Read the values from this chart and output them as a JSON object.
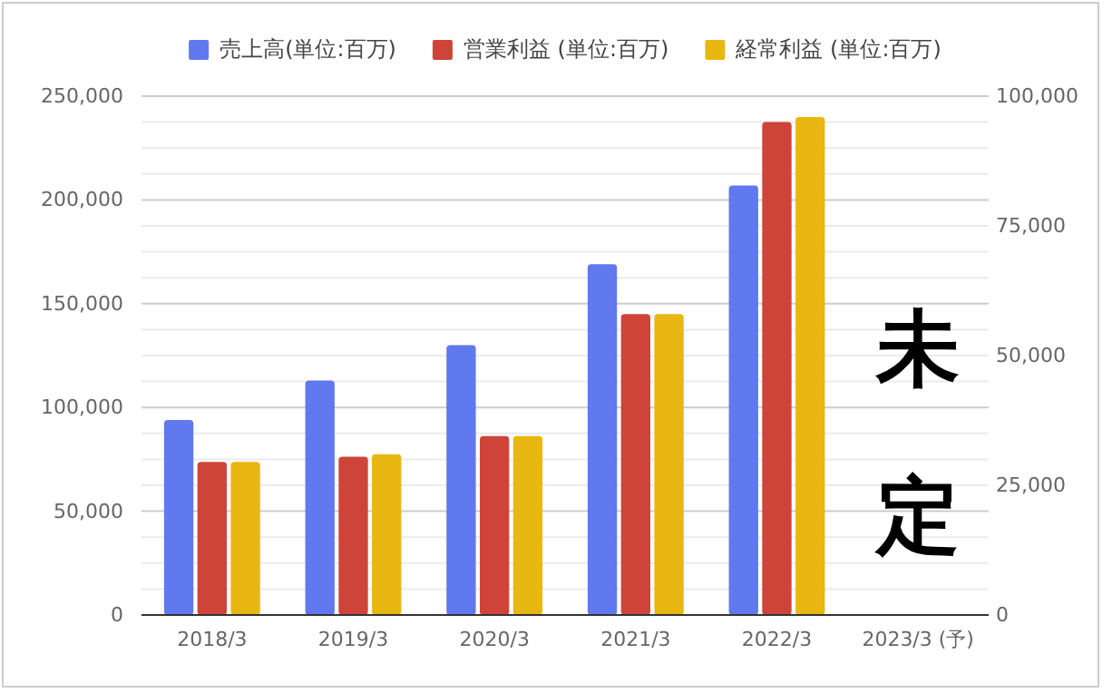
{
  "chart_data": {
    "type": "bar",
    "categories": [
      "2018/3",
      "2019/3",
      "2020/3",
      "2021/3",
      "2022/3",
      "2023/3 (予)"
    ],
    "series": [
      {
        "name": "売上高(単位:百万)",
        "color": "#6079ee",
        "values": [
          94000,
          113000,
          130000,
          169000,
          207000,
          null
        ]
      },
      {
        "name": "営業利益 (単位:百万)",
        "color": "#cf4438",
        "axis": "y2",
        "values": [
          29500,
          30500,
          34500,
          58000,
          95000,
          null
        ]
      },
      {
        "name": "経常利益 (単位:百万)",
        "color": "#e8b712",
        "axis": "y2",
        "values": [
          29500,
          31000,
          34500,
          58000,
          96000,
          null
        ]
      }
    ],
    "ylim": [
      0,
      250000
    ],
    "yticks": [
      {
        "value": 0,
        "label": "0"
      },
      {
        "value": 50000,
        "label": "50,000"
      },
      {
        "value": 100000,
        "label": "100,000"
      },
      {
        "value": 150000,
        "label": "150,000"
      },
      {
        "value": 200000,
        "label": "200,000"
      },
      {
        "value": 250000,
        "label": "250,000"
      }
    ],
    "y2lim": [
      0,
      100000
    ],
    "y2ticks": [
      {
        "value": 0,
        "label": "0"
      },
      {
        "value": 25000,
        "label": "25,000"
      },
      {
        "value": 50000,
        "label": "50,000"
      },
      {
        "value": 75000,
        "label": "75,000"
      },
      {
        "value": 100000,
        "label": "100,000"
      }
    ],
    "annotations": [
      "未定"
    ],
    "grid": "y",
    "legend": "top"
  }
}
